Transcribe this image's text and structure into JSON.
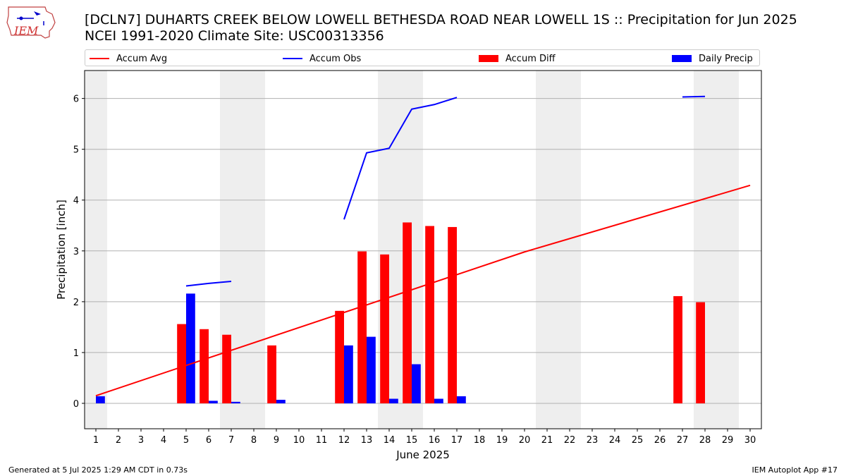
{
  "header": {
    "logo_text": "IEM",
    "title_line1": "[DCLN7] DUHARTS CREEK BELOW LOWELL BETHESDA ROAD NEAR LOWELL 1S :: Precipitation for Jun 2025",
    "title_line2": "NCEI 1991-2020 Climate Site: USC00313356"
  },
  "footer": {
    "generated": "Generated at 5 Jul 2025 1:29 AM CDT in 0.73s",
    "app": "IEM Autoplot App #17"
  },
  "chart_data": {
    "type": "bar",
    "xlabel": "June 2025",
    "ylabel": "Precipitation [inch]",
    "xlim": [
      0.5,
      30.5
    ],
    "ylim": [
      -0.5,
      6.55
    ],
    "yticks": [
      0,
      1,
      2,
      3,
      4,
      5,
      6
    ],
    "xticks": [
      1,
      2,
      3,
      4,
      5,
      6,
      7,
      8,
      9,
      10,
      11,
      12,
      13,
      14,
      15,
      16,
      17,
      18,
      19,
      20,
      21,
      22,
      23,
      24,
      25,
      26,
      27,
      28,
      29,
      30
    ],
    "grid": "y",
    "legend_placement": "top",
    "weekend_shading": [
      [
        0.5,
        1.5
      ],
      [
        6.5,
        8.5
      ],
      [
        13.5,
        15.5
      ],
      [
        20.5,
        22.5
      ],
      [
        27.5,
        29.5
      ]
    ],
    "colors": {
      "accum_avg": "#ff0000",
      "accum_obs": "#0000ff",
      "accum_diff": "#ff0000",
      "daily_precip": "#0000ff",
      "weekend": "#eeeeee",
      "grid": "#b0b0b0"
    },
    "series": [
      {
        "name": "Accum Avg",
        "kind": "line",
        "x": [
          1,
          20,
          30
        ],
        "values": [
          0.15,
          2.98,
          4.29
        ]
      },
      {
        "name": "Accum Obs",
        "kind": "line",
        "segments": [
          {
            "x": [
              5,
              6,
              7
            ],
            "values": [
              2.31,
              2.36,
              2.4
            ]
          },
          {
            "x": [
              12,
              13,
              14,
              15,
              16,
              17
            ],
            "values": [
              3.62,
              4.93,
              5.02,
              5.79,
              5.88,
              6.02
            ]
          },
          {
            "x": [
              27,
              28
            ],
            "values": [
              6.03,
              6.04
            ]
          }
        ]
      },
      {
        "name": "Accum Diff",
        "kind": "bar",
        "x": [
          5,
          6,
          7,
          9,
          12,
          13,
          14,
          15,
          16,
          17,
          27,
          28
        ],
        "values": [
          1.56,
          1.46,
          1.35,
          1.14,
          1.82,
          2.99,
          2.93,
          3.56,
          3.49,
          3.47,
          2.11,
          1.99
        ]
      },
      {
        "name": "Daily Precip",
        "kind": "bar",
        "x": [
          1,
          5,
          6,
          7,
          9,
          12,
          13,
          14,
          15,
          16,
          17
        ],
        "values": [
          0.14,
          2.16,
          0.05,
          0.03,
          0.07,
          1.14,
          1.31,
          0.09,
          0.77,
          0.09,
          0.14
        ]
      }
    ]
  }
}
